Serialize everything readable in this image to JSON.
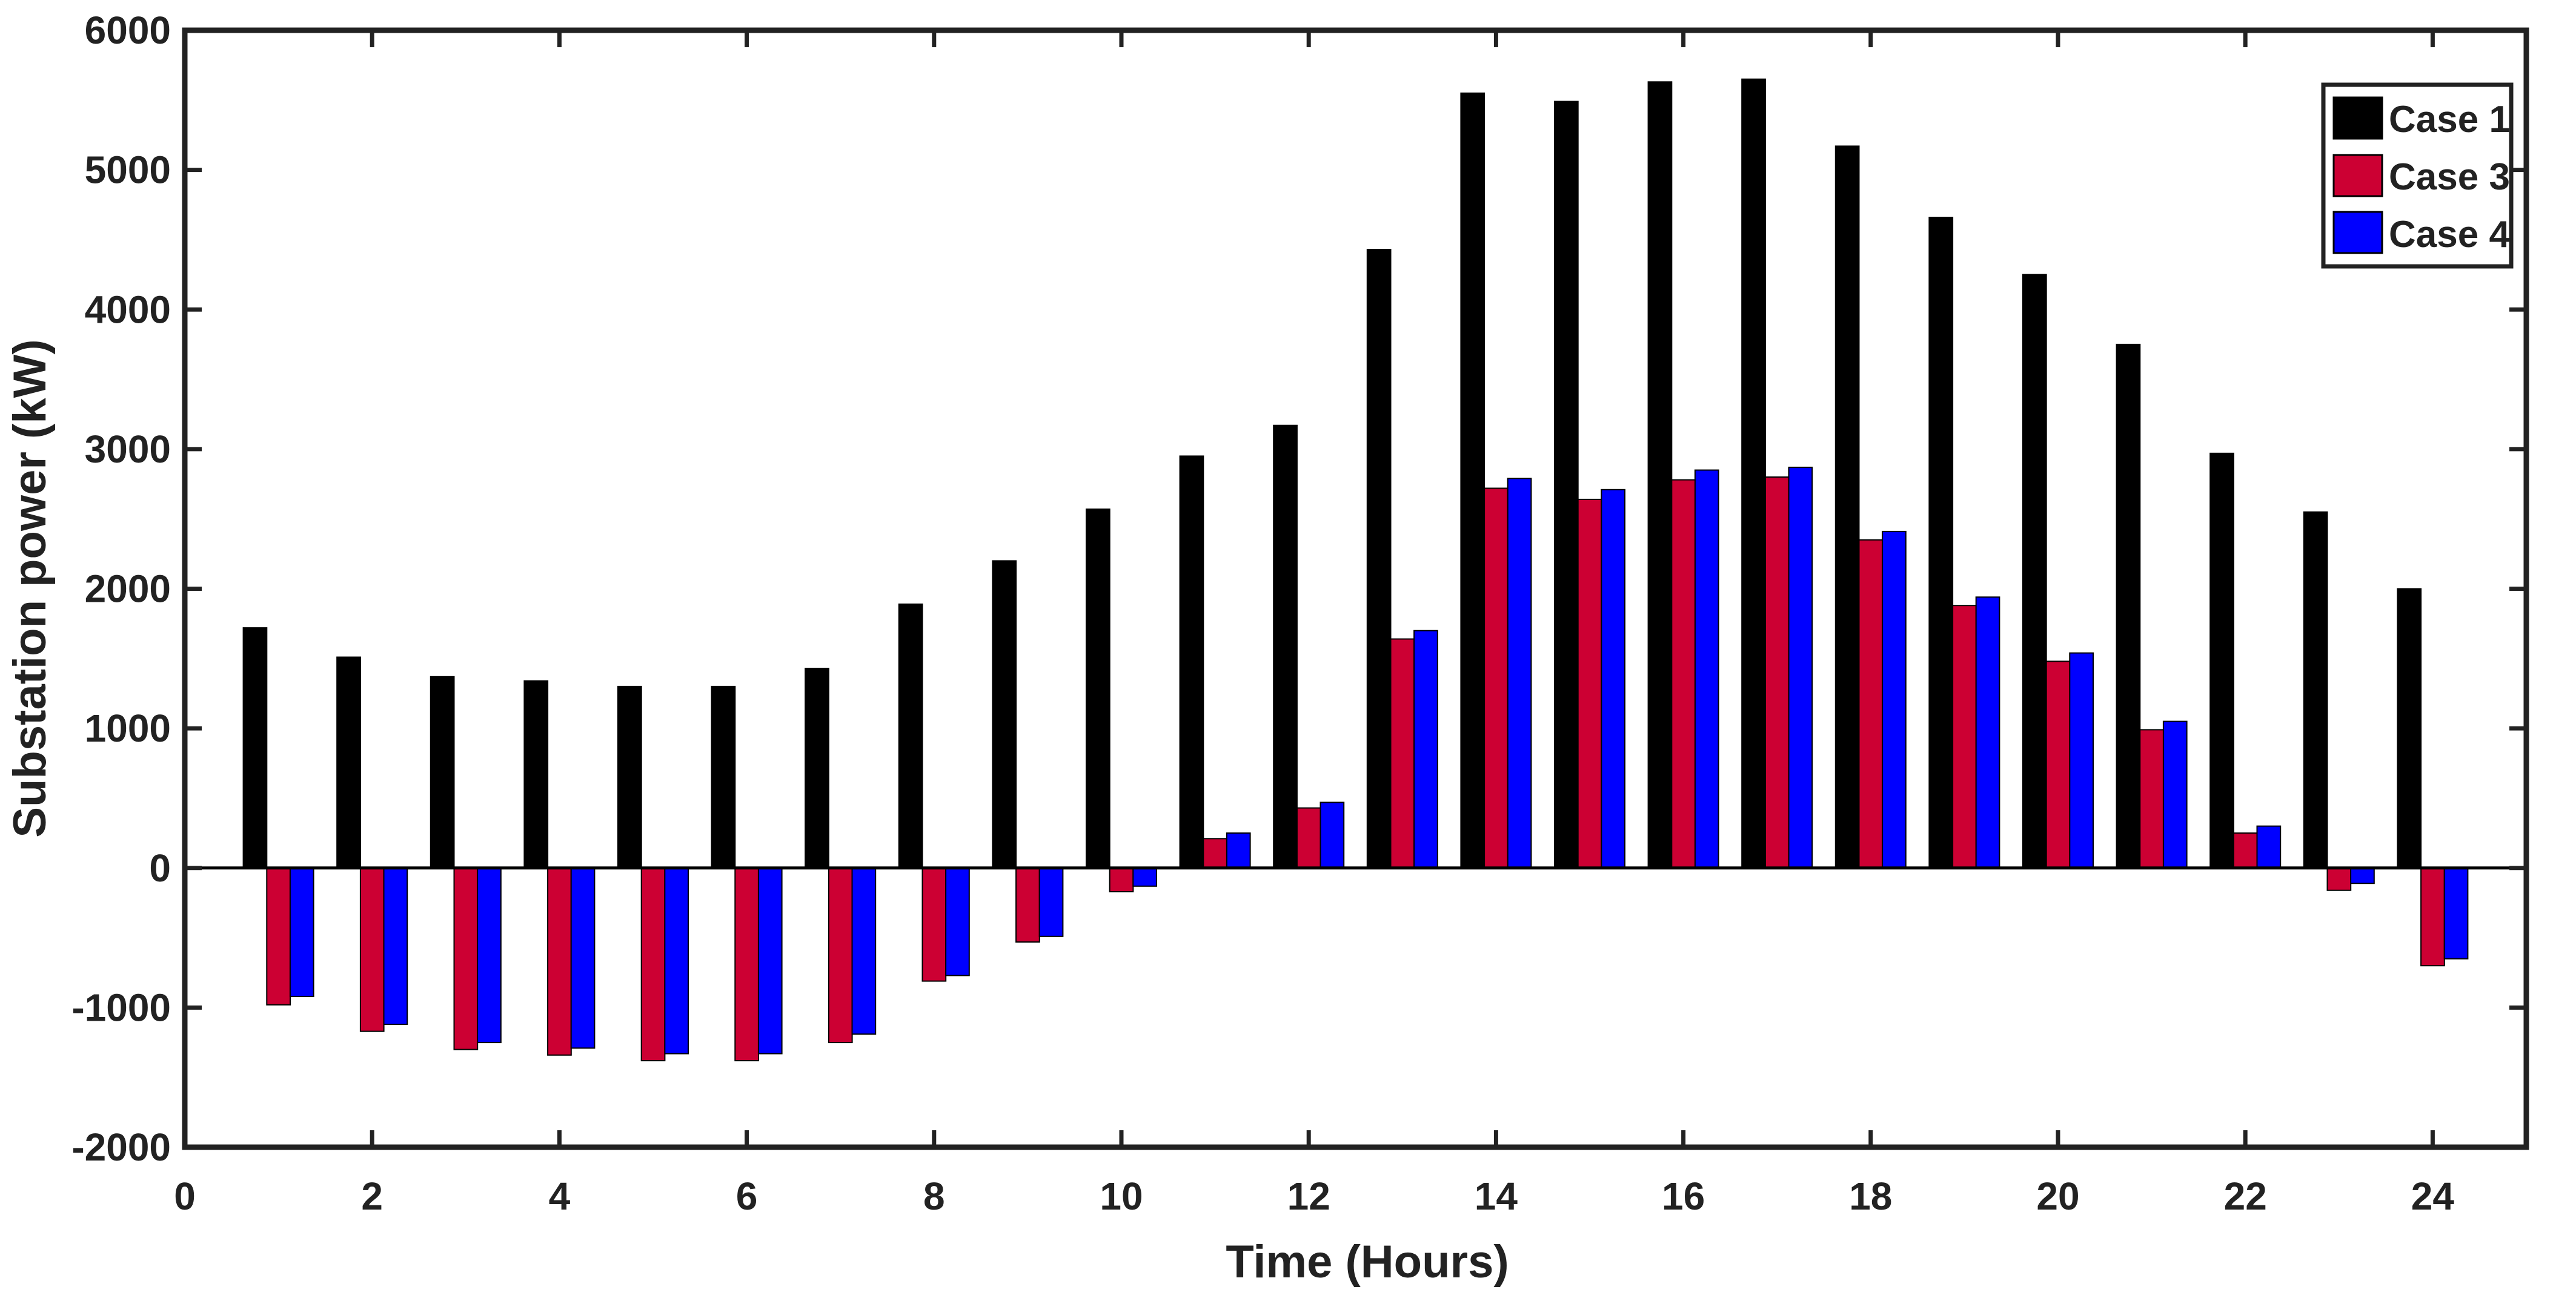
{
  "chart_data": {
    "type": "bar",
    "title": "",
    "xlabel": "Time (Hours)",
    "ylabel": "Substation power (kW)",
    "xlim": [
      0,
      25
    ],
    "ylim": [
      -2000,
      6000
    ],
    "xticks": [
      0,
      2,
      4,
      6,
      8,
      10,
      12,
      14,
      16,
      18,
      20,
      22,
      24
    ],
    "yticks": [
      -2000,
      -1000,
      0,
      1000,
      2000,
      3000,
      4000,
      5000,
      6000
    ],
    "grid": false,
    "legend_position": "top-right",
    "categories": [
      1,
      2,
      3,
      4,
      5,
      6,
      7,
      8,
      9,
      10,
      11,
      12,
      13,
      14,
      15,
      16,
      17,
      18,
      19,
      20,
      21,
      22,
      23,
      24
    ],
    "series": [
      {
        "name": "Case 1",
        "color": "#000000",
        "values": [
          1720,
          1510,
          1370,
          1340,
          1300,
          1300,
          1430,
          1890,
          2200,
          2570,
          2950,
          3170,
          4430,
          5550,
          5490,
          5630,
          5650,
          5170,
          4660,
          4250,
          3750,
          2970,
          2550,
          2000
        ]
      },
      {
        "name": "Case 3",
        "color": "#cc0033",
        "values": [
          -980,
          -1170,
          -1300,
          -1340,
          -1380,
          -1380,
          -1250,
          -810,
          -530,
          -170,
          210,
          430,
          1640,
          2720,
          2640,
          2780,
          2800,
          2350,
          1880,
          1480,
          990,
          250,
          -160,
          -700
        ]
      },
      {
        "name": "Case 4",
        "color": "#0000ff",
        "values": [
          -920,
          -1120,
          -1250,
          -1290,
          -1330,
          -1330,
          -1190,
          -770,
          -490,
          -130,
          250,
          470,
          1700,
          2790,
          2710,
          2850,
          2870,
          2410,
          1940,
          1540,
          1050,
          300,
          -110,
          -650
        ]
      }
    ]
  }
}
